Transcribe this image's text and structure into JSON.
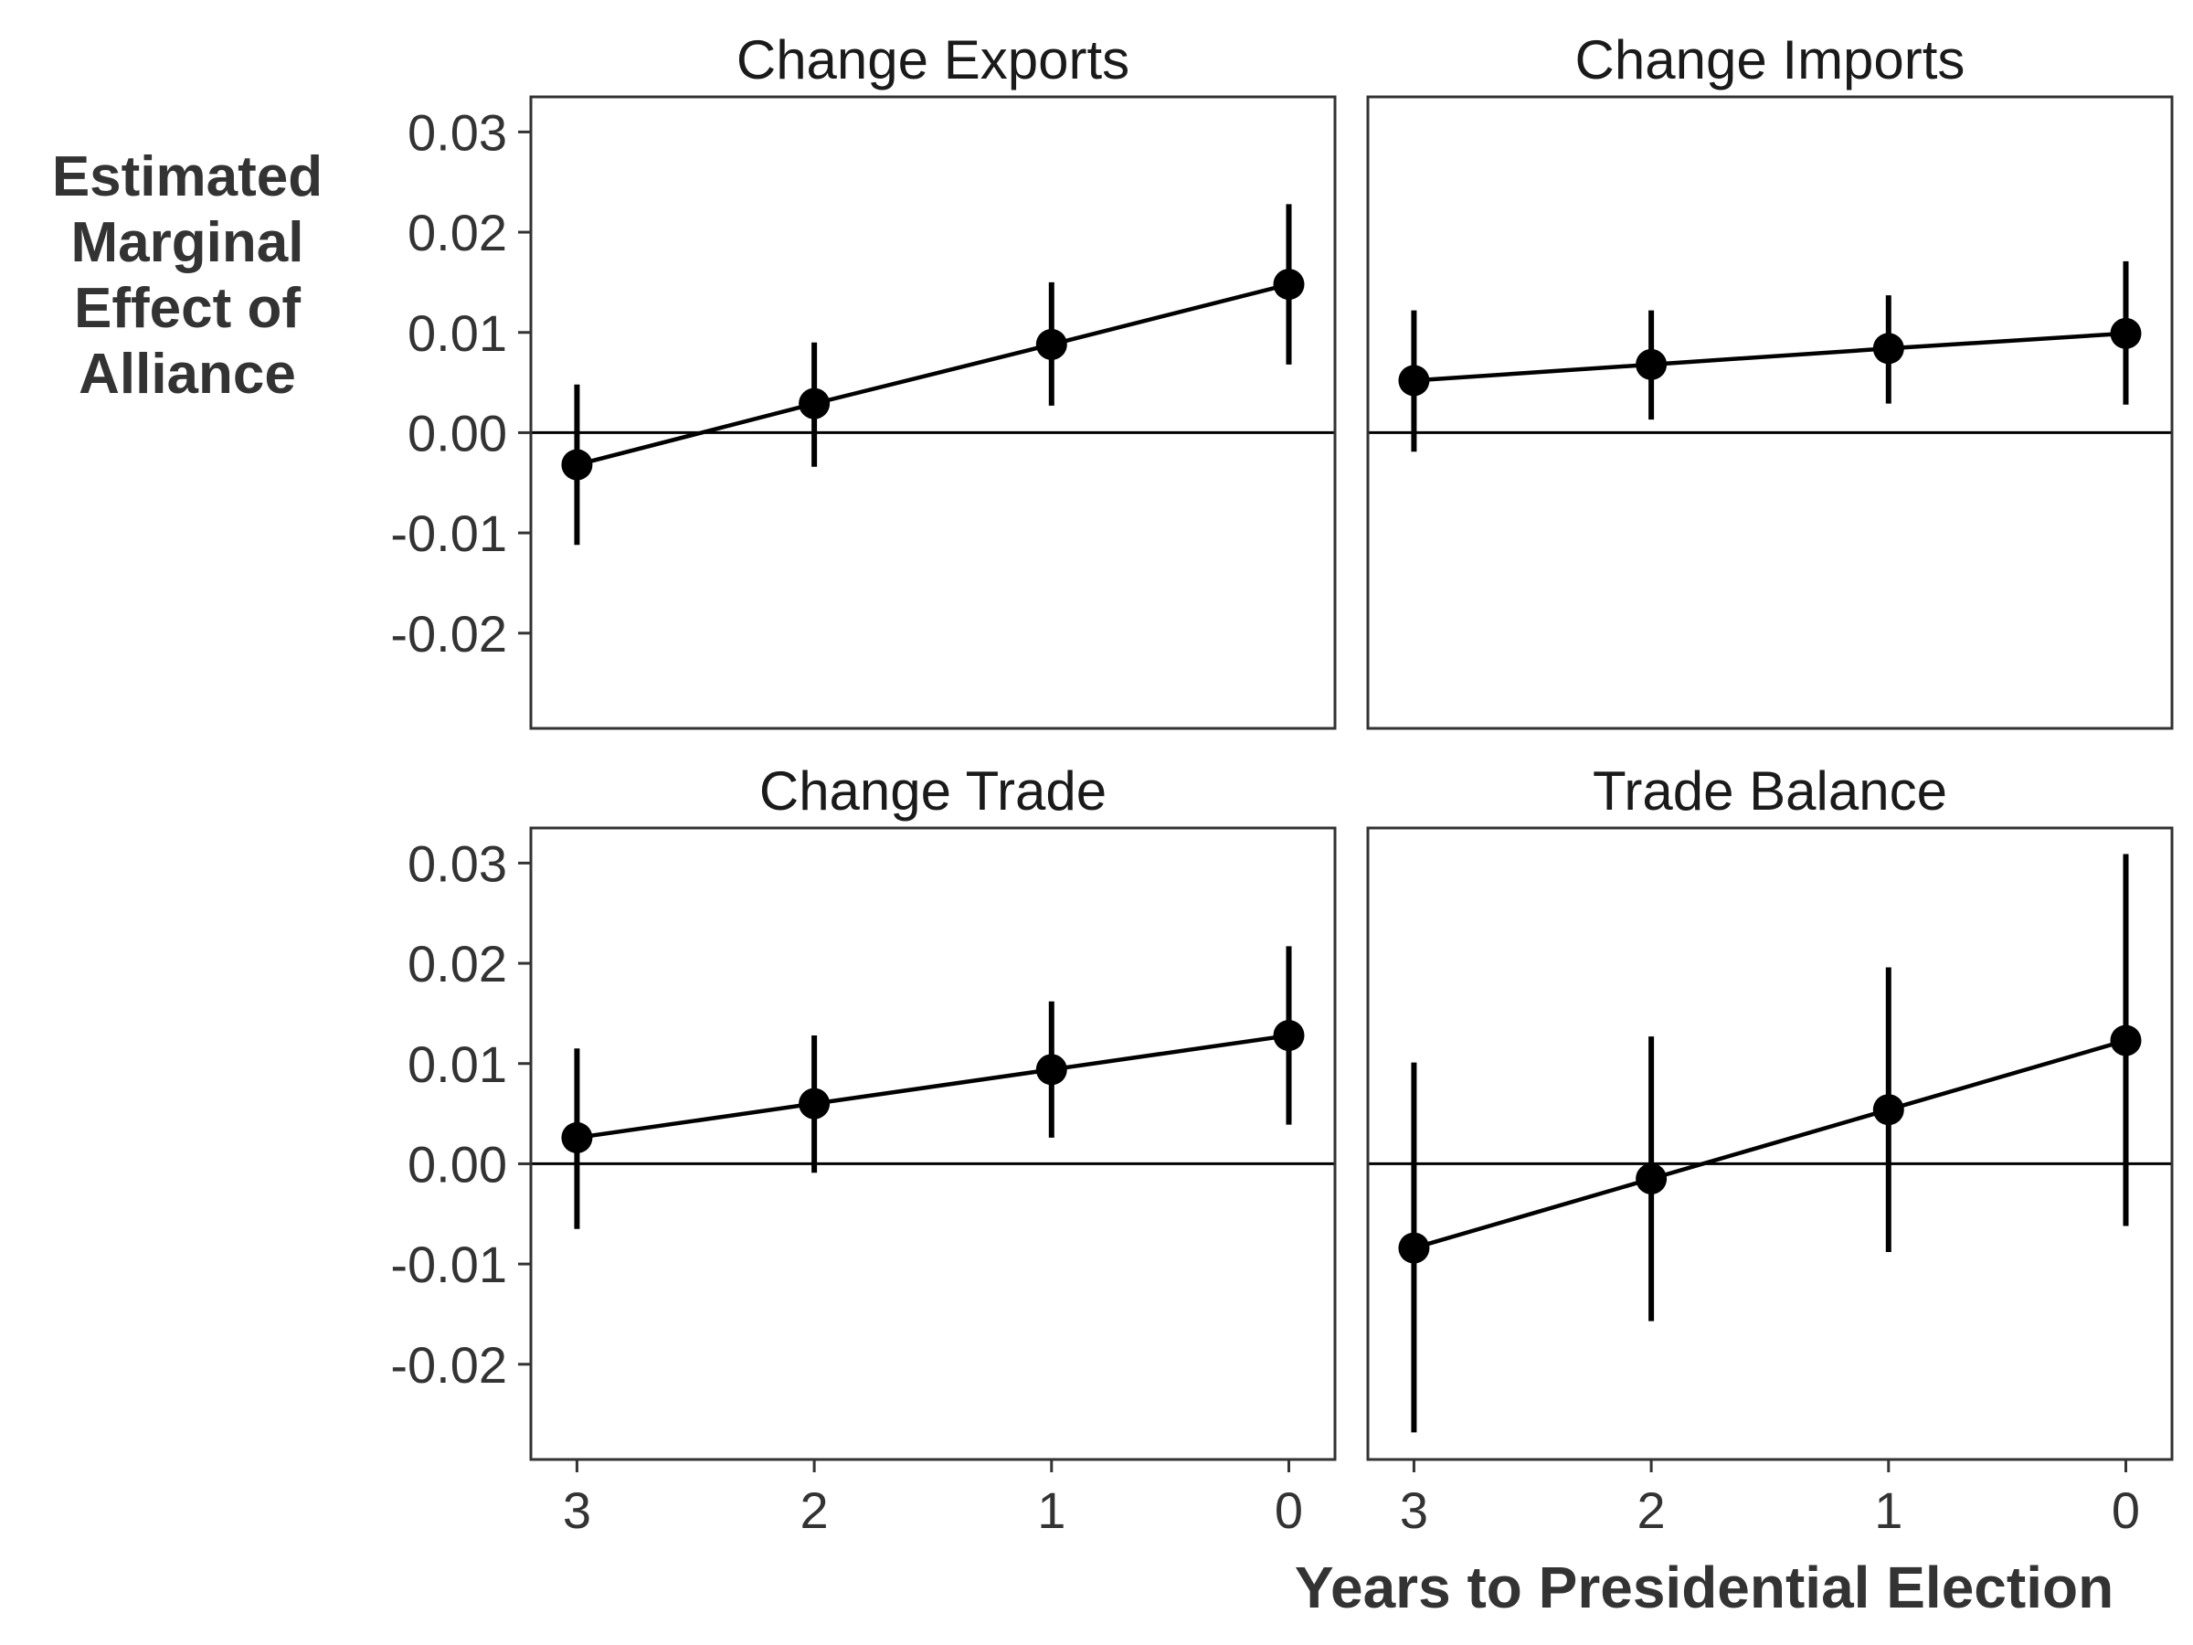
{
  "chart_data": {
    "type": "line",
    "layout": "2x2 facets, shared axes",
    "ylabel": "Estimated\nMarginal\nEffect of\nAlliance",
    "xlabel": "Years to Presidential Election",
    "x": [
      3,
      2,
      1,
      0
    ],
    "x_tick_labels": [
      "3",
      "2",
      "1",
      "0"
    ],
    "x_reversed": true,
    "ylim": [
      -0.0295,
      0.0335
    ],
    "y_ticks": [
      0.03,
      0.02,
      0.01,
      0.0,
      -0.01,
      -0.02
    ],
    "y_tick_labels": [
      "0.03",
      "0.02",
      "0.01",
      "0.00",
      "-0.01",
      "-0.02"
    ],
    "reference_line_y": 0,
    "grid": false,
    "colors": {
      "series": "#000000",
      "axis_text": "#333333",
      "panel_border": "#333333"
    },
    "panels": [
      {
        "title": "Change Exports",
        "estimate": [
          -0.0032,
          0.0029,
          0.0088,
          0.0148
        ],
        "lower": [
          -0.0112,
          -0.0034,
          0.0027,
          0.0068
        ],
        "upper": [
          0.0048,
          0.009,
          0.015,
          0.0228
        ]
      },
      {
        "title": "Change Imports",
        "estimate": [
          0.0052,
          0.0068,
          0.0084,
          0.0099
        ],
        "lower": [
          -0.0019,
          0.0013,
          0.0029,
          0.0028
        ],
        "upper": [
          0.0122,
          0.0122,
          0.0137,
          0.0171
        ]
      },
      {
        "title": "Change Trade",
        "estimate": [
          0.0026,
          0.006,
          0.0094,
          0.0128
        ],
        "lower": [
          -0.0065,
          -0.0009,
          0.0026,
          0.0039
        ],
        "upper": [
          0.0115,
          0.0128,
          0.0162,
          0.0217
        ]
      },
      {
        "title": "Trade Balance",
        "estimate": [
          -0.0084,
          -0.0015,
          0.0054,
          0.0123
        ],
        "lower": [
          -0.0268,
          -0.0157,
          -0.0088,
          -0.0062
        ],
        "upper": [
          0.0101,
          0.0127,
          0.0196,
          0.0309
        ]
      }
    ]
  }
}
